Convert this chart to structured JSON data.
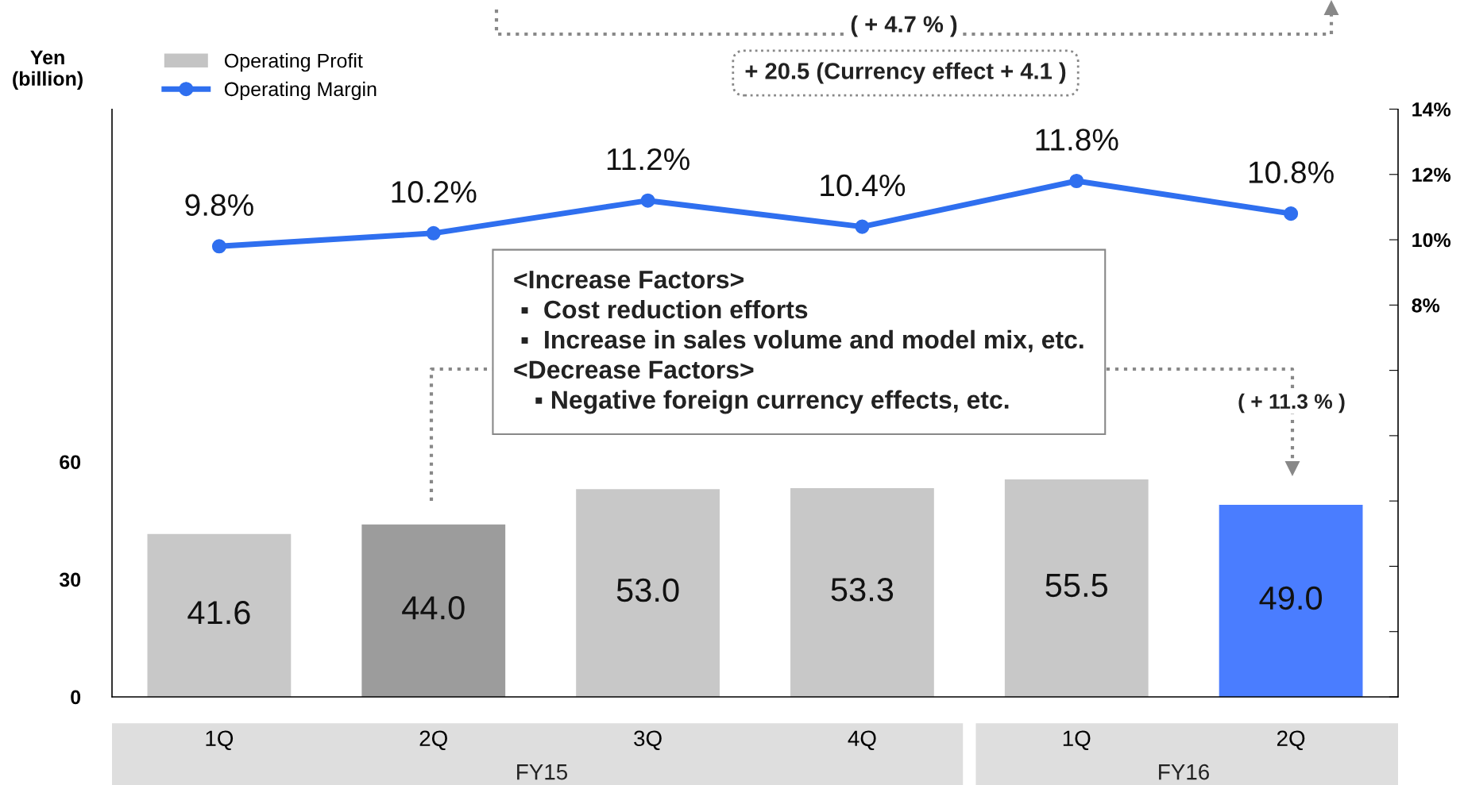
{
  "chart_data": {
    "type": "bar",
    "ylabel": "Yen\n(billion)",
    "categories": [
      "1Q",
      "2Q",
      "3Q",
      "4Q",
      "1Q",
      "2Q"
    ],
    "series": [
      {
        "name": "Operating Profit",
        "color": "#c4c4c4",
        "colors": [
          "#c8c8c8",
          "#9c9c9c",
          "#c8c8c8",
          "#c8c8c8",
          "#c8c8c8",
          "#4a7dff"
        ],
        "values": [
          41.6,
          44.0,
          53.0,
          53.3,
          55.5,
          49.0
        ],
        "value_labels": [
          "41.6",
          "44.0",
          "53.0",
          "53.3",
          "55.5",
          "49.0"
        ]
      },
      {
        "name": "Operating Margin",
        "type": "line",
        "axis": "y2",
        "color": "#2f6fef",
        "values": [
          9.8,
          10.2,
          11.2,
          10.4,
          11.8,
          10.8
        ],
        "value_labels": [
          "9.8%",
          "10.2%",
          "11.2%",
          "10.4%",
          "11.8%",
          "10.8%"
        ]
      }
    ],
    "ylim": [
      0,
      150
    ],
    "yticks": [
      0,
      30,
      60
    ],
    "y2lim": [
      -4,
      14
    ],
    "y2ticks": [
      {
        "value": -4,
        "label": null
      },
      {
        "value": -2,
        "label": null
      },
      {
        "value": 0,
        "label": null
      },
      {
        "value": 2,
        "label": null
      },
      {
        "value": 4,
        "label": null
      },
      {
        "value": 6,
        "label": null
      },
      {
        "value": 8,
        "label": "8%"
      },
      {
        "value": 10,
        "label": "10%"
      },
      {
        "value": 12,
        "label": "12%"
      },
      {
        "value": 14,
        "label": "14%"
      }
    ],
    "marker": "circle",
    "legend": "top left",
    "grid": false,
    "annotations": [
      "( + 4.7 % )",
      "+ 20.5 (Currency effect + 4.1 )",
      "<Increase Factors>\n ▪  Cost reduction efforts\n ▪  Increase in sales volume and model mix, etc.\n<Decrease Factors>\n   ▪ Negative foreign currency effects, etc.",
      "( + 11.3 % )",
      "FY15",
      "FY16"
    ]
  }
}
